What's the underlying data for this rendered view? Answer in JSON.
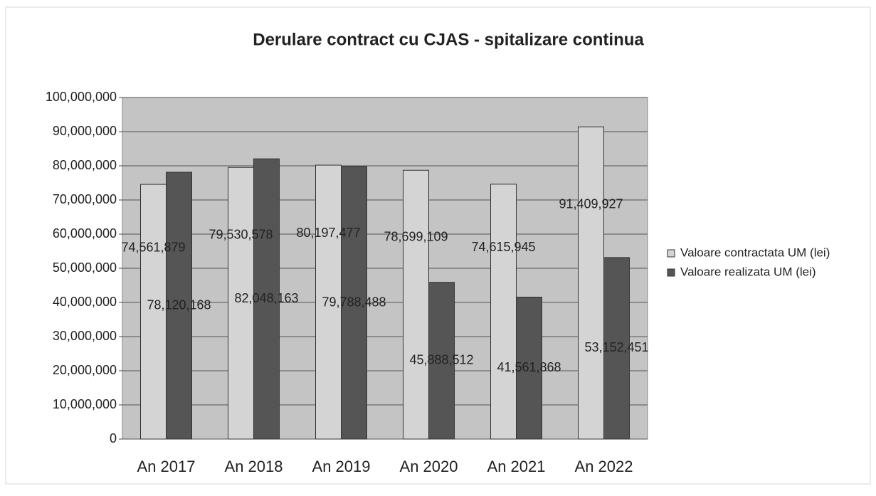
{
  "chart_data": {
    "type": "bar",
    "title": "Derulare contract cu CJAS - spitalizare continua",
    "categories": [
      "An 2017",
      "An 2018",
      "An 2019",
      "An 2020",
      "An 2021",
      "An 2022"
    ],
    "series": [
      {
        "name": "Valoare contractata UM (lei)",
        "color": "#d4d4d4",
        "values": [
          74561879,
          79530578,
          80197477,
          78699109,
          74615945,
          91409927
        ],
        "value_labels": [
          "74,561,879",
          "79,530,578",
          "80,197,477",
          "78,699,109",
          "74,615,945",
          "91,409,927"
        ]
      },
      {
        "name": "Valoare realizata UM (lei)",
        "color": "#555555",
        "values": [
          78120168,
          82048163,
          79788488,
          45888512,
          41561868,
          53152451
        ],
        "value_labels": [
          "78,120,168",
          "82,048,163",
          "79,788,488",
          "45,888,512",
          "41,561,868",
          "53,152,451"
        ]
      }
    ],
    "ylim": [
      0,
      100000000
    ],
    "yticks": [
      0,
      {
        "value": 10000000,
        "label": "10,000,000"
      },
      {
        "value": 20000000,
        "label": "20,000,000"
      },
      {
        "value": 30000000,
        "label": "30,000,000"
      },
      {
        "value": 40000000,
        "label": "40,000,000"
      },
      {
        "value": 50000000,
        "label": "50,000,000"
      },
      {
        "value": 60000000,
        "label": "60,000,000"
      },
      {
        "value": 70000000,
        "label": "70,000,000"
      },
      {
        "value": 80000000,
        "label": "80,000,000"
      },
      {
        "value": 90000000,
        "label": "90,000,000"
      },
      {
        "value": 100000000,
        "label": "100,000,000"
      }
    ],
    "grid": true,
    "legend": "right"
  }
}
